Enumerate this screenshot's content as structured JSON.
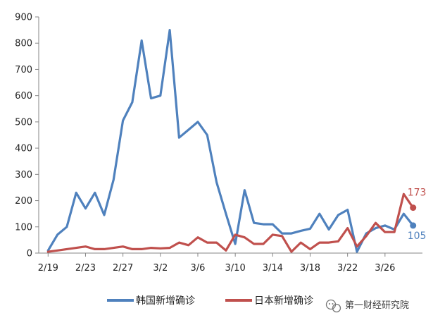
{
  "chart_data": {
    "type": "line",
    "title": "",
    "xlabel": "",
    "ylabel": "",
    "ylim": [
      0,
      900
    ],
    "yticks": [
      0,
      100,
      200,
      300,
      400,
      500,
      600,
      700,
      800,
      900
    ],
    "xtick_labels": [
      "2/19",
      "2/23",
      "2/27",
      "3/2",
      "3/6",
      "3/10",
      "3/14",
      "3/18",
      "3/22",
      "3/26"
    ],
    "x": [
      "2/19",
      "2/20",
      "2/21",
      "2/22",
      "2/23",
      "2/24",
      "2/25",
      "2/26",
      "2/27",
      "2/28",
      "2/29",
      "3/1",
      "3/2",
      "3/3",
      "3/4",
      "3/5",
      "3/6",
      "3/7",
      "3/8",
      "3/9",
      "3/10",
      "3/11",
      "3/12",
      "3/13",
      "3/14",
      "3/15",
      "3/16",
      "3/17",
      "3/18",
      "3/19",
      "3/20",
      "3/21",
      "3/22",
      "3/23",
      "3/24",
      "3/25",
      "3/26",
      "3/27",
      "3/28",
      "3/29"
    ],
    "grid": false,
    "legend_position": "bottom",
    "series": [
      {
        "name": "韩国新增确诊",
        "color": "#4F81BD",
        "values": [
          10,
          70,
          100,
          230,
          170,
          230,
          145,
          280,
          505,
          575,
          810,
          590,
          600,
          850,
          440,
          470,
          500,
          450,
          270,
          150,
          35,
          240,
          115,
          110,
          110,
          75,
          75,
          85,
          93,
          150,
          90,
          145,
          165,
          5,
          75,
          95,
          105,
          90,
          150,
          105
        ],
        "end_label": "105"
      },
      {
        "name": "日本新增确诊",
        "color": "#C0504D",
        "values": [
          5,
          10,
          15,
          20,
          25,
          15,
          15,
          20,
          25,
          15,
          15,
          20,
          18,
          20,
          40,
          30,
          60,
          40,
          40,
          10,
          70,
          60,
          35,
          35,
          70,
          65,
          5,
          40,
          15,
          40,
          40,
          45,
          95,
          25,
          65,
          115,
          80,
          80,
          225,
          173
        ],
        "end_label": "173"
      }
    ]
  },
  "watermark": {
    "text": "第一财经研究院",
    "icon": "wechat-icon"
  }
}
